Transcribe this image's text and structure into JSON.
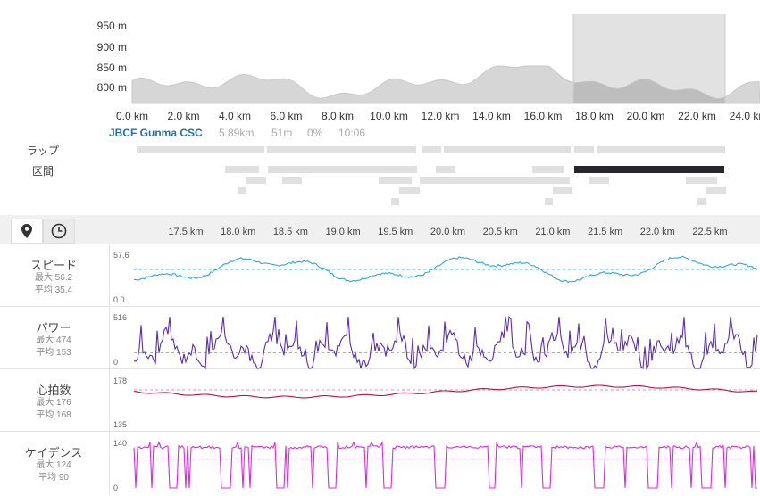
{
  "overview": {
    "y_labels": [
      "950 m",
      "900 m",
      "850 m",
      "800 m"
    ],
    "x_labels": [
      "0.0 km",
      "2.0 km",
      "4.0 km",
      "6.0 km",
      "8.0 km",
      "10.0 km",
      "12.0 km",
      "14.0 km",
      "16.0 km",
      "18.0 km",
      "20.0 km",
      "22.0 km",
      "24.0 km"
    ],
    "selection_km": [
      17.2,
      23.0
    ]
  },
  "segment": {
    "name": "JBCF Gunma CSC",
    "distance": "5.89km",
    "elevation": "51m",
    "grade": "0%",
    "time": "10:06"
  },
  "lap_label": "ラップ",
  "section_label": "区間",
  "tabs": {
    "map_icon": "map-pin-icon",
    "time_icon": "clock-icon"
  },
  "detail_x_labels": [
    "17.5 km",
    "18.0 km",
    "18.5 km",
    "19.0 km",
    "19.5 km",
    "20.0 km",
    "20.5 km",
    "21.0 km",
    "21.5 km",
    "22.0 km",
    "22.5 km"
  ],
  "metrics": [
    {
      "title": "スピード",
      "max": "最大 56.2",
      "avg": "平均 35.4",
      "top_tick": "57.6",
      "bottom_tick": "0.0",
      "color": "#2ea8d6"
    },
    {
      "title": "パワー",
      "max": "最大 474",
      "avg": "平均 153",
      "top_tick": "516",
      "bottom_tick": "0",
      "color": "#5b2db5"
    },
    {
      "title": "心拍数",
      "max": "最大 176",
      "avg": "平均 168",
      "top_tick": "178",
      "bottom_tick": "135",
      "color": "#b3134f"
    },
    {
      "title": "ケイデンス",
      "max": "最大 124",
      "avg": "平均 90",
      "top_tick": "140",
      "bottom_tick": "0",
      "color": "#d32ed8"
    }
  ]
}
